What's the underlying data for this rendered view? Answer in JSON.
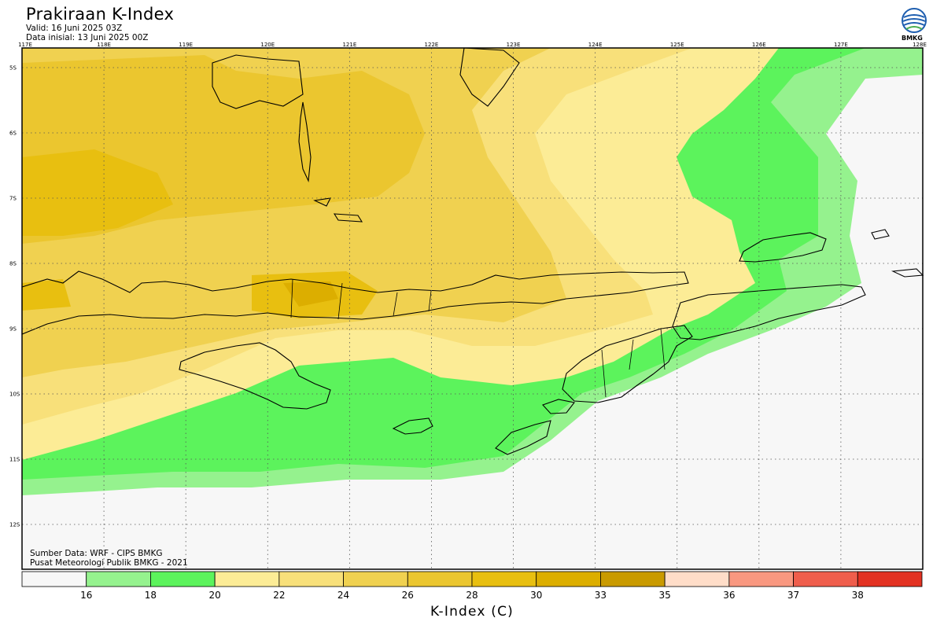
{
  "header": {
    "title": "Prakiraan K-Index",
    "valid": "Valid: 16 Juni 2025 03Z",
    "init": "Data inisial: 13 Juni 2025 00Z",
    "logo_text": "BMKG"
  },
  "footer": {
    "source": "Sumber Data: WRF - CIPS BMKG",
    "org": "Pusat Meteorologi Publik BMKG - 2021"
  },
  "map": {
    "lon_labels": [
      "117E",
      "118E",
      "119E",
      "120E",
      "121E",
      "122E",
      "123E",
      "124E",
      "125E",
      "126E",
      "127E",
      "128E"
    ],
    "lat_labels": [
      "5S",
      "6S",
      "7S",
      "8S",
      "9S",
      "10S",
      "11S",
      "12S"
    ]
  },
  "colorbar": {
    "title": "K-Index (C)",
    "tick_labels": [
      "16",
      "18",
      "20",
      "22",
      "24",
      "26",
      "28",
      "30",
      "33",
      "35",
      "36",
      "37",
      "38"
    ],
    "colors": [
      "#f7f7f7",
      "#95f28e",
      "#5cf35c",
      "#fcec96",
      "#f8e07a",
      "#f0d150",
      "#ebc62f",
      "#e8bf10",
      "#dcae00",
      "#c99a00",
      "#ffddc8",
      "#f99880",
      "#ef5e4c",
      "#e33222"
    ]
  },
  "colors": {
    "frame": "#000000",
    "background": "#ffffff"
  }
}
